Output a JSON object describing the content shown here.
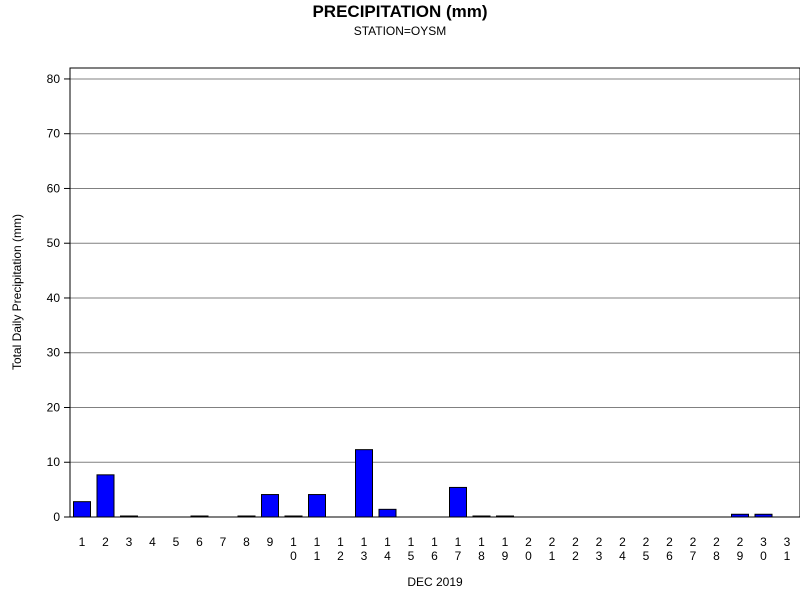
{
  "chart_data": {
    "type": "bar",
    "title": "PRECIPITATION (mm)",
    "subtitle": "STATION=OYSM",
    "xlabel": "DEC 2019",
    "ylabel": "Total Daily Precipitation (mm)",
    "ylim": [
      0,
      82
    ],
    "yticks": [
      0,
      10,
      20,
      30,
      40,
      50,
      60,
      70,
      80
    ],
    "grid": true,
    "bar_color": "#0000ff",
    "categories": [
      "1",
      "2",
      "3",
      "4",
      "5",
      "6",
      "7",
      "8",
      "9",
      "10",
      "11",
      "12",
      "13",
      "14",
      "15",
      "16",
      "17",
      "18",
      "19",
      "20",
      "21",
      "22",
      "23",
      "24",
      "25",
      "26",
      "27",
      "28",
      "29",
      "30",
      "31"
    ],
    "values": [
      2.8,
      7.7,
      0.1,
      0.0,
      0.0,
      0.1,
      0.0,
      0.1,
      4.1,
      0.1,
      4.1,
      0.0,
      12.3,
      1.4,
      0.0,
      0.0,
      5.4,
      0.1,
      0.1,
      0.0,
      0.0,
      0.0,
      0.0,
      0.0,
      0.0,
      0.0,
      0.0,
      0.0,
      0.5,
      0.5,
      0.0
    ]
  }
}
